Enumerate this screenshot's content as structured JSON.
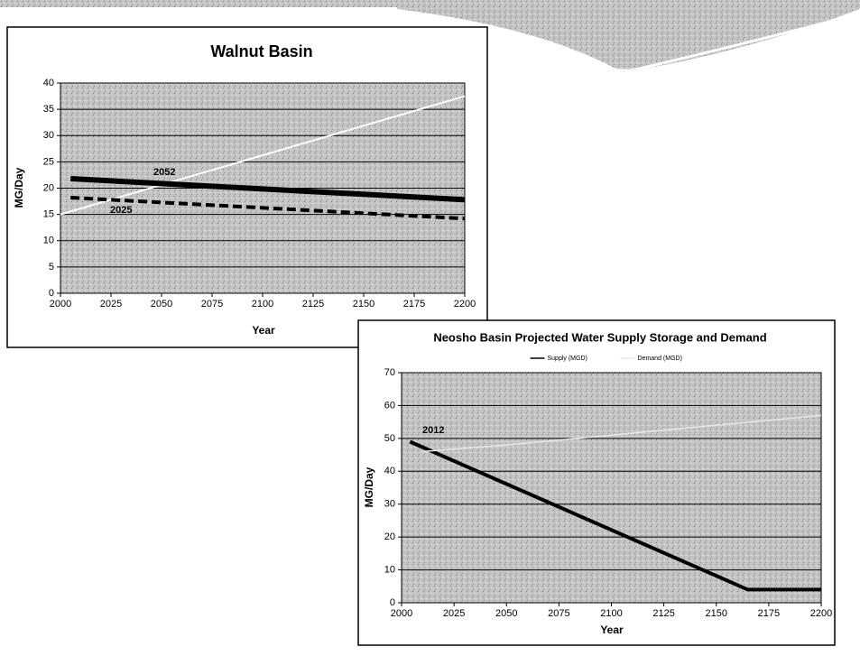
{
  "chart_data": [
    {
      "type": "line",
      "title": "Walnut Basin",
      "xlabel": "Year",
      "ylabel": "MG/Day",
      "xlim": [
        2000,
        2200
      ],
      "xticks": [
        2000,
        2025,
        2050,
        2075,
        2100,
        2125,
        2150,
        2175,
        2200
      ],
      "ylim": [
        0,
        40
      ],
      "yticks": [
        0,
        5,
        10,
        15,
        20,
        25,
        30,
        35,
        40
      ],
      "grid": true,
      "series": [
        {
          "color": "#ffffff",
          "style": "thin",
          "x": [
            2000,
            2200
          ],
          "values": [
            15,
            37.5
          ]
        },
        {
          "color": "#000000",
          "style": "solid",
          "x": [
            2005,
            2200
          ],
          "values": [
            21.8,
            17.8
          ]
        },
        {
          "color": "#000000",
          "style": "dashed",
          "x": [
            2005,
            2200
          ],
          "values": [
            18.2,
            14.2
          ]
        }
      ],
      "annotations": [
        "2052",
        "2025"
      ]
    },
    {
      "type": "line",
      "title": "Neosho Basin Projected Water Supply Storage and Demand",
      "xlabel": "Year",
      "ylabel": "MG/Day",
      "xlim": [
        2000,
        2200
      ],
      "xticks": [
        2000,
        2025,
        2050,
        2075,
        2100,
        2125,
        2150,
        2175,
        2200
      ],
      "ylim": [
        0,
        70
      ],
      "yticks": [
        0,
        10,
        20,
        30,
        40,
        50,
        60,
        70
      ],
      "grid": true,
      "legend": "top",
      "series": [
        {
          "name": "Supply (MGD)",
          "color": "#000000",
          "style": "solid",
          "x": [
            2004,
            2165,
            2200
          ],
          "values": [
            49,
            4,
            4
          ]
        },
        {
          "name": "Demand (MGD)",
          "color": "#e8e8e8",
          "style": "thin",
          "x": [
            2010,
            2050,
            2100,
            2150,
            2200
          ],
          "values": [
            46,
            48,
            51,
            54,
            57
          ]
        }
      ],
      "annotations": [
        "2012"
      ]
    }
  ]
}
